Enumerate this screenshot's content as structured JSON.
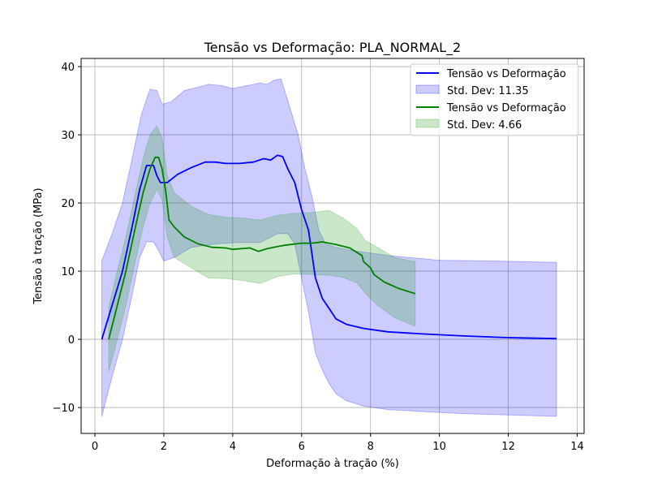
{
  "chart_data": {
    "type": "line",
    "title": "Tensão vs Deformação: PLA_NORMAL_2",
    "xlabel": "Deformação à tração (%)",
    "ylabel": "Tensão à tração (MPa)",
    "xlim": [
      -0.4,
      14.2
    ],
    "ylim": [
      -13.8,
      41.2
    ],
    "xticks": [
      0,
      2,
      4,
      6,
      8,
      10,
      12,
      14
    ],
    "yticks": [
      -10,
      0,
      10,
      20,
      30,
      40
    ],
    "xtick_labels": [
      "0",
      "2",
      "4",
      "6",
      "8",
      "10",
      "12",
      "14"
    ],
    "ytick_labels": [
      "−10",
      "0",
      "10",
      "20",
      "30",
      "40"
    ],
    "grid": true,
    "legend_position": "top-right",
    "legend": [
      "Tensão vs Deformação",
      "Std. Dev: 11.35",
      "Tensão vs Deformação",
      "Std. Dev: 4.66"
    ],
    "series": [
      {
        "name": "Tensão vs Deformação",
        "color": "#0000ff",
        "band_color": "#0000ff",
        "std_dev": 11.35,
        "points": [
          [
            0.2,
            0
          ],
          [
            0.5,
            5
          ],
          [
            0.8,
            10
          ],
          [
            1.1,
            17
          ],
          [
            1.3,
            22
          ],
          [
            1.5,
            25.5
          ],
          [
            1.7,
            25.5
          ],
          [
            1.8,
            24
          ],
          [
            1.9,
            23
          ],
          [
            2.1,
            23
          ],
          [
            2.4,
            24.2
          ],
          [
            2.8,
            25.2
          ],
          [
            3.2,
            26
          ],
          [
            3.5,
            26
          ],
          [
            3.8,
            25.8
          ],
          [
            4.2,
            25.8
          ],
          [
            4.6,
            26
          ],
          [
            4.9,
            26.5
          ],
          [
            5.1,
            26.3
          ],
          [
            5.3,
            27
          ],
          [
            5.45,
            26.8
          ],
          [
            5.6,
            25
          ],
          [
            5.8,
            23
          ],
          [
            6.0,
            19
          ],
          [
            6.2,
            16
          ],
          [
            6.4,
            9
          ],
          [
            6.6,
            6
          ],
          [
            6.8,
            4.5
          ],
          [
            7.0,
            3
          ],
          [
            7.3,
            2.2
          ],
          [
            7.8,
            1.6
          ],
          [
            8.5,
            1.1
          ],
          [
            9.5,
            0.8
          ],
          [
            10.7,
            0.5
          ],
          [
            12,
            0.25
          ],
          [
            13.4,
            0.1
          ]
        ],
        "upper": [
          [
            0.2,
            11.5
          ],
          [
            0.5,
            15.5
          ],
          [
            0.8,
            20
          ],
          [
            1.1,
            27
          ],
          [
            1.35,
            33
          ],
          [
            1.6,
            36.7
          ],
          [
            1.8,
            36.5
          ],
          [
            1.95,
            34.5
          ],
          [
            2.2,
            34.8
          ],
          [
            2.6,
            36.5
          ],
          [
            3.0,
            37
          ],
          [
            3.3,
            37.4
          ],
          [
            3.7,
            37.2
          ],
          [
            4.0,
            36.8
          ],
          [
            4.4,
            37.2
          ],
          [
            4.8,
            37.6
          ],
          [
            5.0,
            37.4
          ],
          [
            5.2,
            38
          ],
          [
            5.4,
            38.2
          ],
          [
            5.6,
            35
          ],
          [
            5.9,
            30
          ],
          [
            6.1,
            25
          ],
          [
            6.3,
            21
          ],
          [
            6.5,
            16
          ],
          [
            6.7,
            14
          ],
          [
            7.0,
            13.5
          ],
          [
            7.5,
            13
          ],
          [
            8.5,
            12.3
          ],
          [
            10,
            11.6
          ],
          [
            11.5,
            11.5
          ],
          [
            13.4,
            11.3
          ]
        ],
        "lower": [
          [
            0.2,
            -11.3
          ],
          [
            0.5,
            -5.5
          ],
          [
            0.8,
            0
          ],
          [
            1.1,
            7
          ],
          [
            1.3,
            12
          ],
          [
            1.5,
            14.3
          ],
          [
            1.7,
            14.3
          ],
          [
            1.85,
            13
          ],
          [
            2.0,
            11.5
          ],
          [
            2.3,
            12
          ],
          [
            2.8,
            13.5
          ],
          [
            3.5,
            14
          ],
          [
            4.2,
            14.2
          ],
          [
            4.8,
            14.2
          ],
          [
            5.3,
            15.5
          ],
          [
            5.6,
            15.5
          ],
          [
            5.8,
            14
          ],
          [
            6.0,
            9
          ],
          [
            6.2,
            4
          ],
          [
            6.4,
            -2
          ],
          [
            6.6,
            -4.5
          ],
          [
            6.8,
            -6.5
          ],
          [
            7.0,
            -8
          ],
          [
            7.3,
            -9
          ],
          [
            7.8,
            -9.8
          ],
          [
            8.5,
            -10.3
          ],
          [
            9.5,
            -10.6
          ],
          [
            10.7,
            -10.9
          ],
          [
            12,
            -11.1
          ],
          [
            13.4,
            -11.3
          ]
        ]
      },
      {
        "name": "Tensão vs Deformação",
        "color": "#008000",
        "band_color": "#2ca02c",
        "std_dev": 4.66,
        "points": [
          [
            0.4,
            0
          ],
          [
            0.6,
            4
          ],
          [
            0.9,
            10
          ],
          [
            1.2,
            17
          ],
          [
            1.4,
            21.5
          ],
          [
            1.6,
            25
          ],
          [
            1.75,
            26.7
          ],
          [
            1.85,
            26.7
          ],
          [
            1.95,
            25
          ],
          [
            2.05,
            22
          ],
          [
            2.15,
            17.5
          ],
          [
            2.3,
            16.5
          ],
          [
            2.6,
            15
          ],
          [
            3.0,
            14
          ],
          [
            3.4,
            13.5
          ],
          [
            3.8,
            13.4
          ],
          [
            4.0,
            13.2
          ],
          [
            4.5,
            13.4
          ],
          [
            4.75,
            12.9
          ],
          [
            5.0,
            13.3
          ],
          [
            5.3,
            13.6
          ],
          [
            5.5,
            13.8
          ],
          [
            6.0,
            14.1
          ],
          [
            6.3,
            14.1
          ],
          [
            6.6,
            14.3
          ],
          [
            7.0,
            13.9
          ],
          [
            7.4,
            13.4
          ],
          [
            7.75,
            12.3
          ],
          [
            7.8,
            11.4
          ],
          [
            8.0,
            10.5
          ],
          [
            8.1,
            9.5
          ],
          [
            8.4,
            8.4
          ],
          [
            8.8,
            7.5
          ],
          [
            9.3,
            6.7
          ]
        ],
        "upper": [
          [
            0.4,
            4.7
          ],
          [
            0.6,
            9
          ],
          [
            0.9,
            15
          ],
          [
            1.2,
            22
          ],
          [
            1.4,
            26.5
          ],
          [
            1.6,
            30
          ],
          [
            1.8,
            31.3
          ],
          [
            1.95,
            29.5
          ],
          [
            2.1,
            24
          ],
          [
            2.3,
            21.5
          ],
          [
            2.8,
            19.5
          ],
          [
            3.3,
            18.3
          ],
          [
            3.8,
            17.9
          ],
          [
            4.3,
            17.8
          ],
          [
            4.8,
            17.5
          ],
          [
            5.3,
            18.2
          ],
          [
            5.8,
            18.5
          ],
          [
            6.3,
            18.6
          ],
          [
            6.8,
            18.9
          ],
          [
            7.2,
            17.8
          ],
          [
            7.6,
            16.3
          ],
          [
            7.85,
            14.5
          ],
          [
            8.2,
            13.5
          ],
          [
            8.7,
            12
          ],
          [
            9.3,
            11.4
          ]
        ],
        "lower": [
          [
            0.4,
            -4.7
          ],
          [
            0.6,
            -1
          ],
          [
            0.9,
            5
          ],
          [
            1.2,
            12
          ],
          [
            1.4,
            16.5
          ],
          [
            1.6,
            20
          ],
          [
            1.8,
            22
          ],
          [
            1.95,
            20.5
          ],
          [
            2.1,
            15
          ],
          [
            2.3,
            12
          ],
          [
            2.8,
            10.5
          ],
          [
            3.3,
            9
          ],
          [
            3.8,
            8.9
          ],
          [
            4.3,
            8.6
          ],
          [
            4.8,
            8.2
          ],
          [
            5.3,
            9.2
          ],
          [
            5.8,
            9.6
          ],
          [
            6.3,
            9.5
          ],
          [
            6.8,
            9.4
          ],
          [
            7.2,
            9.1
          ],
          [
            7.6,
            8.3
          ],
          [
            7.9,
            6.5
          ],
          [
            8.2,
            5
          ],
          [
            8.7,
            3.2
          ],
          [
            9.3,
            1.9
          ]
        ]
      }
    ]
  }
}
